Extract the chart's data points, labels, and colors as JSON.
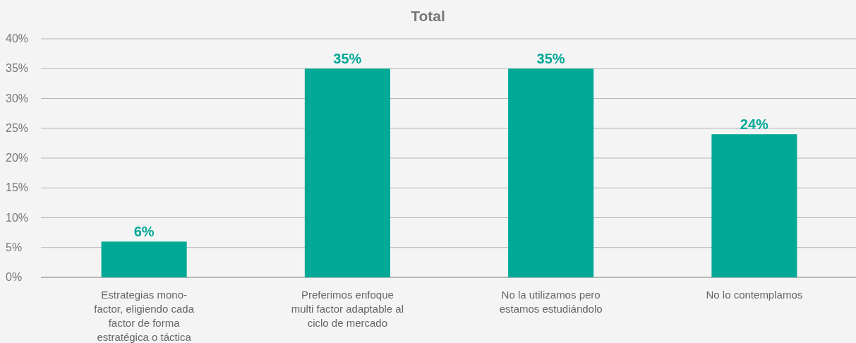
{
  "chart_data": {
    "type": "bar",
    "title": "Total",
    "categories": [
      "Estrategias mono-factor, eligiendo cada factor de forma estratégica o táctica",
      "Preferimos enfoque multi factor adaptable al ciclo de mercado",
      "No la utilizamos pero estamos estudiándolo",
      "No lo contemplamos"
    ],
    "values": [
      6,
      35,
      35,
      24
    ],
    "color": "#00a896",
    "ylim": [
      0,
      40
    ],
    "yticks": [
      {
        "value": 0,
        "label": "0%"
      },
      {
        "value": 5,
        "label": "5%"
      },
      {
        "value": 10,
        "label": "10%"
      },
      {
        "value": 15,
        "label": "15%"
      },
      {
        "value": 20,
        "label": "20%"
      },
      {
        "value": 25,
        "label": "25%"
      },
      {
        "value": 30,
        "label": "30%"
      },
      {
        "value": 35,
        "label": "35%"
      },
      {
        "value": 40,
        "label": "40%"
      }
    ],
    "value_labels": [
      "6%",
      "35%",
      "35%",
      "24%"
    ],
    "grid": "y"
  }
}
